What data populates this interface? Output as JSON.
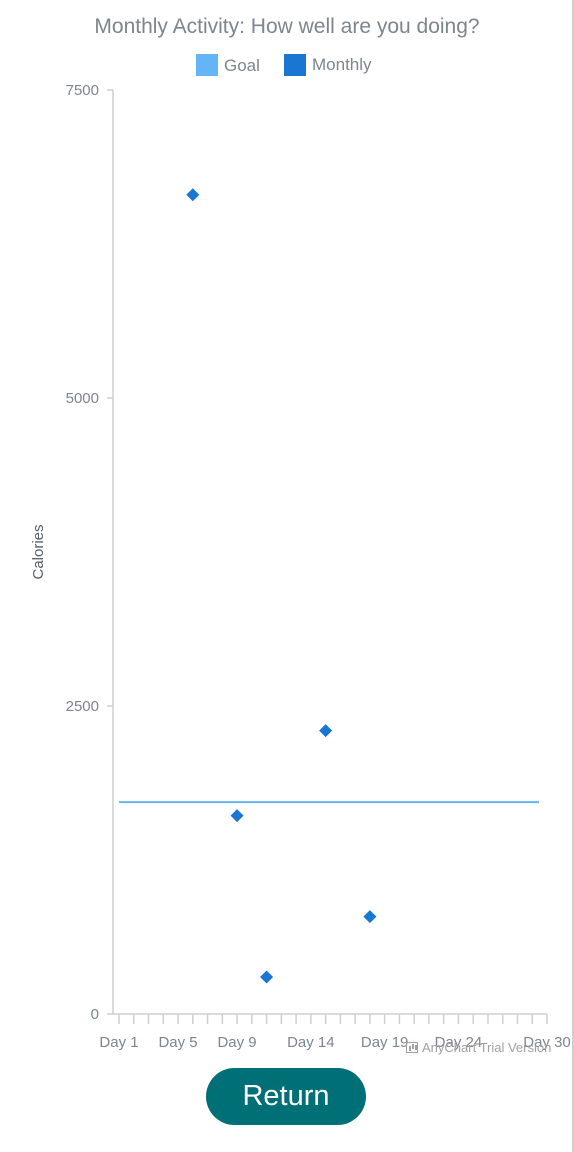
{
  "chart_data": {
    "type": "scatter",
    "title": "Monthly Activity: How well are you doing?",
    "ylabel": "Calories",
    "xlabel": "",
    "ylim": [
      0,
      7500
    ],
    "y_ticks": [
      "7500",
      "5000",
      "2500",
      "0"
    ],
    "x_domain": [
      1,
      30
    ],
    "x_tick_labels": [
      "Day 1",
      "Day 5",
      "Day 9",
      "Day 14",
      "Day 19",
      "Day 24",
      "Day 30"
    ],
    "legend": [
      "Goal",
      "Monthly"
    ],
    "legend_position": "top",
    "series": [
      {
        "name": "Goal",
        "marker": "line",
        "color": "#64b5f6",
        "x": [
          1,
          30
        ],
        "values": [
          1720,
          1720
        ]
      },
      {
        "name": "Monthly",
        "marker": "diamond",
        "color": "#1976d2",
        "x": [
          6,
          9,
          11,
          15,
          18
        ],
        "values": [
          6650,
          1610,
          300,
          2300,
          790
        ]
      }
    ]
  },
  "credits": {
    "text": "AnyChart Trial Version"
  },
  "buttons": {
    "return_label": "Return"
  },
  "colors": {
    "button": "#006f76",
    "goal": "#64b5f6",
    "monthly": "#1976d2"
  }
}
